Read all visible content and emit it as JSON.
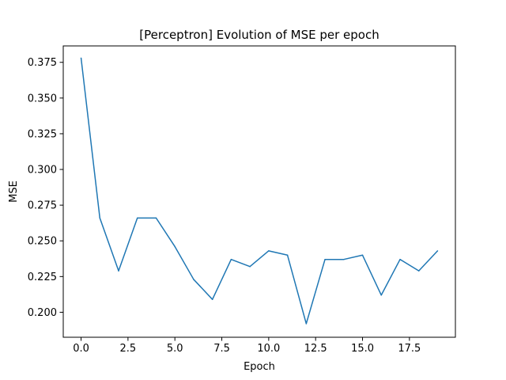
{
  "chart_data": {
    "type": "line",
    "title": "[Perceptron] Evolution of MSE per epoch",
    "xlabel": "Epoch",
    "ylabel": "MSE",
    "xlim": [
      -0.95,
      19.95
    ],
    "ylim": [
      0.1825,
      0.3865
    ],
    "xticks": [
      0.0,
      2.5,
      5.0,
      7.5,
      10.0,
      12.5,
      15.0,
      17.5
    ],
    "xtick_labels": [
      "0.0",
      "2.5",
      "5.0",
      "7.5",
      "10.0",
      "12.5",
      "15.0",
      "17.5"
    ],
    "yticks": [
      0.2,
      0.225,
      0.25,
      0.275,
      0.3,
      0.325,
      0.35,
      0.375
    ],
    "ytick_labels": [
      "0.200",
      "0.225",
      "0.250",
      "0.275",
      "0.300",
      "0.325",
      "0.350",
      "0.375"
    ],
    "grid": false,
    "series": [
      {
        "color": "#1f77b4",
        "x": [
          0,
          1,
          2,
          3,
          4,
          5,
          6,
          7,
          8,
          9,
          10,
          11,
          12,
          13,
          14,
          15,
          16,
          17,
          18,
          19
        ],
        "y": [
          0.378,
          0.266,
          0.229,
          0.266,
          0.266,
          0.246,
          0.223,
          0.209,
          0.237,
          0.232,
          0.243,
          0.24,
          0.192,
          0.237,
          0.237,
          0.24,
          0.212,
          0.237,
          0.229,
          0.243
        ]
      }
    ]
  }
}
